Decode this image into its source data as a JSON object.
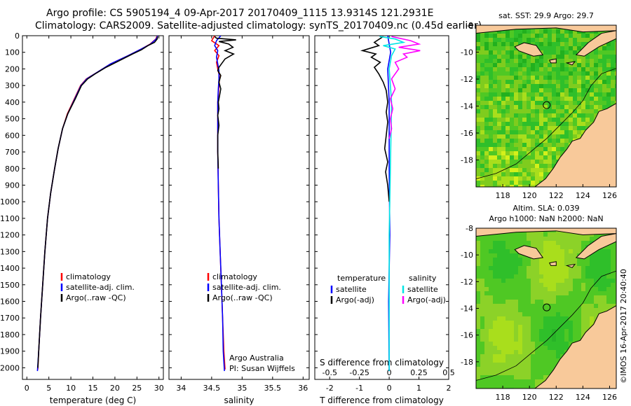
{
  "header": {
    "line1": "Argo profile: CS 5905194_4 09-Apr-2017 20170409_1115 13.9314S 121.2931E",
    "line2": "Climatology: CARS2009. Satellite-adjusted climatology: synTS_20170409.nc (0.45d earlier)"
  },
  "chart_data": [
    {
      "type": "line",
      "panel": "temperature",
      "xlabel": "temperature (deg C)",
      "ylabel": "",
      "xlim": [
        -1,
        31
      ],
      "ylim": [
        2070,
        0
      ],
      "xticks": [
        0,
        5,
        10,
        15,
        20,
        25,
        30
      ],
      "yticks": [
        0,
        100,
        200,
        300,
        400,
        500,
        600,
        700,
        800,
        900,
        1000,
        1100,
        1200,
        1300,
        1400,
        1500,
        1600,
        1700,
        1800,
        1900,
        2000
      ],
      "legend": [
        "climatology",
        "satellite-adj. clim.",
        "Argo(..raw -QC)"
      ],
      "legend_colors": [
        "#ff0000",
        "#0000ff",
        "#000000"
      ],
      "series": [
        {
          "name": "climatology",
          "color": "#ff0000",
          "points": [
            [
              29.6,
              0
            ],
            [
              29.3,
              20
            ],
            [
              28,
              50
            ],
            [
              26,
              80
            ],
            [
              23,
              120
            ],
            [
              19,
              170
            ],
            [
              16,
              220
            ],
            [
              13.5,
              260
            ],
            [
              12.2,
              300
            ],
            [
              10.8,
              380
            ],
            [
              9.2,
              470
            ],
            [
              8.1,
              560
            ],
            [
              7.1,
              680
            ],
            [
              6.3,
              800
            ],
            [
              5.4,
              950
            ],
            [
              4.7,
              1100
            ],
            [
              4.1,
              1300
            ],
            [
              3.6,
              1500
            ],
            [
              3.1,
              1700
            ],
            [
              2.7,
              1900
            ],
            [
              2.5,
              2010
            ]
          ]
        },
        {
          "name": "satellite-adj. clim.",
          "color": "#0000ff",
          "points": [
            [
              29.7,
              0
            ],
            [
              29.4,
              20
            ],
            [
              28.1,
              50
            ],
            [
              26,
              80
            ],
            [
              23,
              120
            ],
            [
              19,
              170
            ],
            [
              16,
              220
            ],
            [
              13.6,
              260
            ],
            [
              12.3,
              300
            ],
            [
              10.9,
              380
            ],
            [
              9.3,
              470
            ],
            [
              8.1,
              560
            ],
            [
              7.1,
              680
            ],
            [
              6.3,
              800
            ],
            [
              5.4,
              950
            ],
            [
              4.7,
              1100
            ],
            [
              4.1,
              1300
            ],
            [
              3.6,
              1500
            ],
            [
              3.1,
              1700
            ],
            [
              2.7,
              1900
            ],
            [
              2.4,
              2020
            ]
          ]
        },
        {
          "name": "Argo(..raw -QC)",
          "color": "#000000",
          "points": [
            [
              29.7,
              5
            ],
            [
              29.6,
              20
            ],
            [
              29,
              40
            ],
            [
              27.5,
              60
            ],
            [
              26,
              85
            ],
            [
              24,
              110
            ],
            [
              21,
              150
            ],
            [
              18,
              190
            ],
            [
              15.5,
              230
            ],
            [
              13.8,
              260
            ],
            [
              12.4,
              300
            ],
            [
              11,
              380
            ],
            [
              9.3,
              470
            ],
            [
              8.1,
              560
            ],
            [
              7.1,
              680
            ],
            [
              6.3,
              800
            ],
            [
              5.4,
              950
            ],
            [
              4.7,
              1100
            ],
            [
              4.1,
              1300
            ],
            [
              3.6,
              1500
            ],
            [
              3.1,
              1700
            ],
            [
              2.7,
              1900
            ],
            [
              2.5,
              2000
            ]
          ]
        }
      ]
    },
    {
      "type": "line",
      "panel": "salinity",
      "xlabel": "salinity",
      "xlim": [
        33.8,
        36.1
      ],
      "ylim": [
        2070,
        0
      ],
      "xticks": [
        34,
        34.5,
        35,
        35.5,
        36
      ],
      "legend": [
        "climatology",
        "satellite-adj. clim.",
        "Argo(..raw -QC)"
      ],
      "legend_colors": [
        "#ff0000",
        "#0000ff",
        "#000000"
      ],
      "annotation": [
        "Argo Australia",
        "PI: Susan Wijffels"
      ],
      "series": [
        {
          "name": "climatology",
          "color": "#ff0000",
          "points": [
            [
              34.55,
              0
            ],
            [
              34.5,
              30
            ],
            [
              34.62,
              60
            ],
            [
              34.55,
              90
            ],
            [
              34.62,
              120
            ],
            [
              34.58,
              160
            ],
            [
              34.6,
              200
            ],
            [
              34.63,
              250
            ],
            [
              34.62,
              300
            ],
            [
              34.6,
              400
            ],
            [
              34.6,
              500
            ],
            [
              34.6,
              700
            ],
            [
              34.61,
              900
            ],
            [
              34.62,
              1100
            ],
            [
              34.64,
              1300
            ],
            [
              34.66,
              1500
            ],
            [
              34.68,
              1700
            ],
            [
              34.7,
              1900
            ],
            [
              34.72,
              2010
            ]
          ]
        },
        {
          "name": "satellite-adj. clim.",
          "color": "#0000ff",
          "points": [
            [
              34.65,
              0
            ],
            [
              34.58,
              30
            ],
            [
              34.55,
              60
            ],
            [
              34.6,
              90
            ],
            [
              34.58,
              130
            ],
            [
              34.6,
              170
            ],
            [
              34.62,
              210
            ],
            [
              34.62,
              260
            ],
            [
              34.61,
              320
            ],
            [
              34.6,
              400
            ],
            [
              34.6,
              500
            ],
            [
              34.6,
              700
            ],
            [
              34.61,
              900
            ],
            [
              34.62,
              1100
            ],
            [
              34.64,
              1300
            ],
            [
              34.66,
              1500
            ],
            [
              34.68,
              1700
            ],
            [
              34.69,
              1900
            ],
            [
              34.71,
              2020
            ]
          ]
        },
        {
          "name": "Argo(..raw -QC)",
          "color": "#000000",
          "points": [
            [
              34.55,
              5
            ],
            [
              34.58,
              15
            ],
            [
              34.9,
              25
            ],
            [
              34.62,
              35
            ],
            [
              34.78,
              50
            ],
            [
              34.85,
              70
            ],
            [
              34.72,
              90
            ],
            [
              34.86,
              110
            ],
            [
              34.72,
              140
            ],
            [
              34.66,
              170
            ],
            [
              34.62,
              190
            ],
            [
              34.6,
              210
            ],
            [
              34.65,
              240
            ],
            [
              34.62,
              280
            ],
            [
              34.65,
              320
            ],
            [
              34.63,
              360
            ],
            [
              34.61,
              400
            ],
            [
              34.62,
              440
            ],
            [
              34.6,
              480
            ],
            [
              34.62,
              540
            ],
            [
              34.6,
              600
            ],
            [
              34.6,
              700
            ],
            [
              34.61,
              800
            ]
          ]
        }
      ]
    },
    {
      "type": "line",
      "panel": "difference",
      "xlabel": "T difference from climatology",
      "x2label": "S difference from climatology",
      "xlim": [
        -2.5,
        2
      ],
      "x2lim": [
        -0.625,
        0.5
      ],
      "ylim": [
        2070,
        0
      ],
      "xticks": [
        -2,
        -1,
        0,
        1,
        2
      ],
      "x2ticks": [
        -0.5,
        -0.25,
        0,
        0.25,
        0.5
      ],
      "legend_groups": [
        {
          "title": "temperature",
          "items": [
            "satellite",
            "Argo(-adj)"
          ],
          "colors": [
            "#0000ff",
            "#000000"
          ]
        },
        {
          "title": "salinity",
          "items": [
            "satellite",
            "Argo(-adj)"
          ],
          "colors": [
            "#00e5e5",
            "#ff00ff"
          ]
        }
      ],
      "series": [
        {
          "name": "temperature satellite",
          "color": "#0000ff",
          "points": [
            [
              -0.05,
              0
            ],
            [
              0.05,
              100
            ],
            [
              -0.05,
              200
            ],
            [
              0,
              400
            ],
            [
              0,
              800
            ],
            [
              0.02,
              1200
            ],
            [
              -0.02,
              1600
            ],
            [
              0,
              2020
            ]
          ]
        },
        {
          "name": "temperature Argo(-adj)",
          "color": "#000000",
          "points": [
            [
              -0.2,
              5
            ],
            [
              -0.5,
              40
            ],
            [
              -0.35,
              60
            ],
            [
              -0.9,
              90
            ],
            [
              -0.45,
              110
            ],
            [
              -0.6,
              130
            ],
            [
              -0.3,
              160
            ],
            [
              -0.5,
              190
            ],
            [
              -0.35,
              230
            ],
            [
              -0.2,
              280
            ],
            [
              -0.1,
              330
            ],
            [
              -0.05,
              400
            ],
            [
              -0.1,
              460
            ],
            [
              -0.05,
              520
            ],
            [
              -0.1,
              600
            ],
            [
              -0.15,
              680
            ],
            [
              -0.05,
              760
            ],
            [
              -0.12,
              820
            ],
            [
              -0.05,
              900
            ],
            [
              0,
              1000
            ]
          ]
        },
        {
          "name": "salinity satellite",
          "color": "#00e5e5",
          "points": [
            [
              -0.08,
              5
            ],
            [
              0.05,
              20
            ],
            [
              0.12,
              40
            ],
            [
              -0.05,
              60
            ],
            [
              0.05,
              80
            ],
            [
              0.02,
              120
            ],
            [
              0,
              200
            ],
            [
              0.02,
              400
            ],
            [
              0.01,
              800
            ],
            [
              0,
              1200
            ],
            [
              0,
              2020
            ]
          ]
        },
        {
          "name": "salinity Argo(-adj)",
          "color": "#ff00ff",
          "points": [
            [
              0.02,
              5
            ],
            [
              0.18,
              30
            ],
            [
              0.25,
              50
            ],
            [
              0.08,
              70
            ],
            [
              0.26,
              90
            ],
            [
              0.12,
              110
            ],
            [
              0.15,
              130
            ],
            [
              0.05,
              160
            ],
            [
              0.08,
              200
            ],
            [
              0.02,
              260
            ],
            [
              0.05,
              320
            ],
            [
              0.01,
              380
            ],
            [
              0.03,
              440
            ],
            [
              0.01,
              500
            ],
            [
              0.02,
              560
            ],
            [
              0,
              620
            ]
          ]
        }
      ]
    },
    {
      "type": "heatmap",
      "panel": "sst-map",
      "title": "sat. SST: 29.9 Argo: 29.7",
      "xlim": [
        116,
        126.5
      ],
      "ylim": [
        -20,
        -8
      ],
      "xticks": [
        118,
        120,
        122,
        124,
        126
      ],
      "yticks": [
        -8,
        -10,
        -12,
        -14,
        -16,
        -18
      ],
      "argo_position": {
        "lon": 121.29,
        "lat": -13.93
      },
      "colors": {
        "water_high": "#22b01e",
        "water_mid": "#7fcc1e",
        "water_low": "#d4f01a",
        "land": "#f8c99a"
      }
    },
    {
      "type": "heatmap",
      "panel": "sla-map",
      "title": "Altim. SLA: 0.039",
      "subtitle": "Argo h1000: NaN h2000: NaN",
      "xlim": [
        116,
        126.5
      ],
      "ylim": [
        -20,
        -8
      ],
      "xticks": [
        118,
        120,
        122,
        124,
        126
      ],
      "yticks": [
        -8,
        -10,
        -12,
        -14,
        -16,
        -18
      ],
      "argo_position": {
        "lon": 121.29,
        "lat": -13.93
      },
      "colors": {
        "water_high": "#28b428",
        "water_mid": "#8cd228",
        "water_low": "#d9f040",
        "land": "#f8c99a"
      }
    }
  ],
  "footer": {
    "stamp": "©IMOS 16-Apr-2017 20:40:40"
  }
}
